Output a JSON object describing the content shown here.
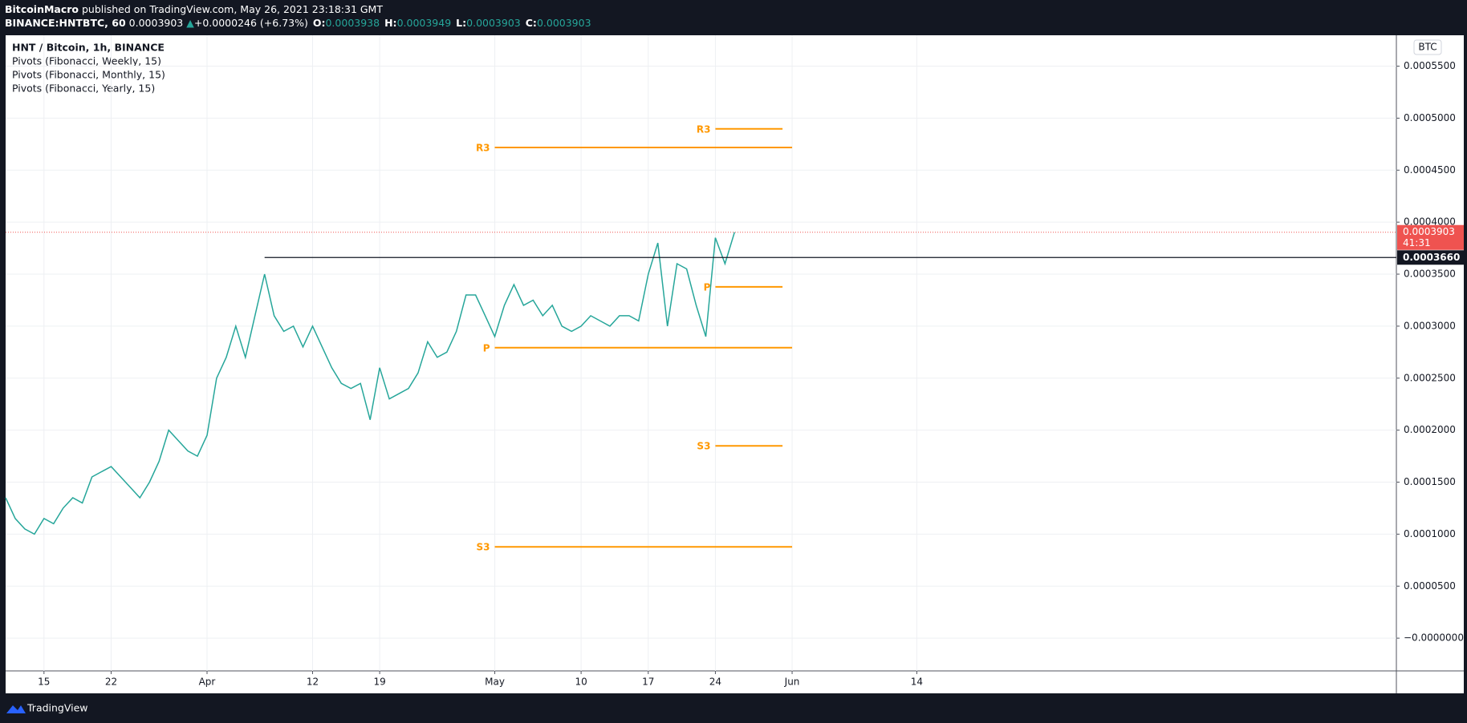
{
  "header": {
    "author": "BitcoinMacro",
    "published": "published on TradingView.com, May 26, 2021 23:18:31 GMT",
    "symbol": "BINANCE:HNTBTC, 60",
    "price": "0.0003903",
    "arrow": "▲",
    "change": "+0.0000246 (+6.73%)",
    "ohlc": [
      {
        "label": "O:",
        "value": "0.0003938"
      },
      {
        "label": "H:",
        "value": "0.0003949"
      },
      {
        "label": "L:",
        "value": "0.0003903"
      },
      {
        "label": "C:",
        "value": "0.0003903"
      }
    ]
  },
  "footer": {
    "brand": "TradingView"
  },
  "chart_data": {
    "type": "line",
    "title": "HNT / Bitcoin, 1h, BINANCE",
    "indicators": [
      "Pivots (Fibonacci, Weekly, 15)",
      "Pivots (Fibonacci, Monthly, 15)",
      "Pivots (Fibonacci, Yearly, 15)"
    ],
    "currency": "BTC",
    "x": [
      "2021-03-11",
      "2021-03-12",
      "2021-03-13",
      "2021-03-14",
      "2021-03-15",
      "2021-03-16",
      "2021-03-17",
      "2021-03-18",
      "2021-03-19",
      "2021-03-20",
      "2021-03-21",
      "2021-03-22",
      "2021-03-23",
      "2021-03-24",
      "2021-03-25",
      "2021-03-26",
      "2021-03-27",
      "2021-03-28",
      "2021-03-29",
      "2021-03-30",
      "2021-03-31",
      "2021-04-01",
      "2021-04-02",
      "2021-04-03",
      "2021-04-04",
      "2021-04-05",
      "2021-04-06",
      "2021-04-07",
      "2021-04-08",
      "2021-04-09",
      "2021-04-10",
      "2021-04-11",
      "2021-04-12",
      "2021-04-13",
      "2021-04-14",
      "2021-04-15",
      "2021-04-16",
      "2021-04-17",
      "2021-04-18",
      "2021-04-19",
      "2021-04-20",
      "2021-04-21",
      "2021-04-22",
      "2021-04-23",
      "2021-04-24",
      "2021-04-25",
      "2021-04-26",
      "2021-04-27",
      "2021-04-28",
      "2021-04-29",
      "2021-04-30",
      "2021-05-01",
      "2021-05-02",
      "2021-05-03",
      "2021-05-04",
      "2021-05-05",
      "2021-05-06",
      "2021-05-07",
      "2021-05-08",
      "2021-05-09",
      "2021-05-10",
      "2021-05-11",
      "2021-05-12",
      "2021-05-13",
      "2021-05-14",
      "2021-05-15",
      "2021-05-16",
      "2021-05-17",
      "2021-05-18",
      "2021-05-19",
      "2021-05-20",
      "2021-05-21",
      "2021-05-22",
      "2021-05-23",
      "2021-05-24",
      "2021-05-25",
      "2021-05-26"
    ],
    "series": [
      {
        "name": "HNT / Bitcoin",
        "color": "#26a69a",
        "values": [
          0.000135,
          0.000115,
          0.000105,
          0.0001,
          0.000115,
          0.00011,
          0.000125,
          0.000135,
          0.00013,
          0.000155,
          0.00016,
          0.000165,
          0.000155,
          0.000145,
          0.000135,
          0.00015,
          0.00017,
          0.0002,
          0.00019,
          0.00018,
          0.000175,
          0.000195,
          0.00025,
          0.00027,
          0.0003,
          0.00027,
          0.00031,
          0.00035,
          0.00031,
          0.000295,
          0.0003,
          0.00028,
          0.0003,
          0.00028,
          0.00026,
          0.000245,
          0.00024,
          0.000245,
          0.00021,
          0.00026,
          0.00023,
          0.000235,
          0.00024,
          0.000255,
          0.000285,
          0.00027,
          0.000275,
          0.000295,
          0.00033,
          0.00033,
          0.00031,
          0.00029,
          0.00032,
          0.00034,
          0.00032,
          0.000325,
          0.00031,
          0.00032,
          0.0003,
          0.000295,
          0.0003,
          0.00031,
          0.000305,
          0.0003,
          0.00031,
          0.00031,
          0.000305,
          0.00035,
          0.00038,
          0.0003,
          0.00036,
          0.000355,
          0.00032,
          0.00029,
          0.000385,
          0.00036,
          0.0003903
        ]
      }
    ],
    "xlim": [
      "2021-03-11",
      "2021-08-03"
    ],
    "xticks": [
      {
        "value": "2021-03-15",
        "label": "15"
      },
      {
        "value": "2021-03-22",
        "label": "22"
      },
      {
        "value": "2021-04-01",
        "label": "Apr"
      },
      {
        "value": "2021-04-12",
        "label": "12"
      },
      {
        "value": "2021-04-19",
        "label": "19"
      },
      {
        "value": "2021-05-01",
        "label": "May"
      },
      {
        "value": "2021-05-10",
        "label": "10"
      },
      {
        "value": "2021-05-17",
        "label": "17"
      },
      {
        "value": "2021-05-24",
        "label": "24"
      },
      {
        "value": "2021-06-01",
        "label": "Jun"
      },
      {
        "value": "2021-06-14",
        "label": "14"
      }
    ],
    "ylim": [
      -3.15e-05,
      0.0005797
    ],
    "yticks": [
      {
        "value": 0,
        "label": "−0.0000000"
      },
      {
        "value": 5e-05,
        "label": "0.0000500"
      },
      {
        "value": 0.0001,
        "label": "0.0001000"
      },
      {
        "value": 0.00015,
        "label": "0.0001500"
      },
      {
        "value": 0.0002,
        "label": "0.0002000"
      },
      {
        "value": 0.00025,
        "label": "0.0002500"
      },
      {
        "value": 0.0003,
        "label": "0.0003000"
      },
      {
        "value": 0.00035,
        "label": "0.0003500"
      },
      {
        "value": 0.0004,
        "label": "0.0004000"
      },
      {
        "value": 0.00045,
        "label": "0.0004500"
      },
      {
        "value": 0.0005,
        "label": "0.0005000"
      },
      {
        "value": 0.00055,
        "label": "0.0005500"
      }
    ],
    "grid": true,
    "pivot_color": "#ff9800",
    "pivots": [
      {
        "label": "R3",
        "value": 0.0004718,
        "start": "2021-05-01",
        "end": "2021-06-01"
      },
      {
        "label": "P",
        "value": 0.0002793,
        "start": "2021-05-01",
        "end": "2021-06-01"
      },
      {
        "label": "S3",
        "value": 8.78e-05,
        "start": "2021-05-01",
        "end": "2021-06-01"
      },
      {
        "label": "R3",
        "value": 0.0004897,
        "start": "2021-05-24",
        "end": "2021-05-31"
      },
      {
        "label": "P",
        "value": 0.0003378,
        "start": "2021-05-24",
        "end": "2021-05-31"
      },
      {
        "label": "S3",
        "value": 0.0001849,
        "start": "2021-05-24",
        "end": "2021-05-31"
      }
    ],
    "hline": {
      "value": 0.000366,
      "label": "0.0003660",
      "start": "2021-04-07",
      "color": "#131722"
    },
    "last_price": {
      "value": 0.0003903,
      "label": "0.0003903",
      "countdown": "41:31",
      "color": "#ef5350"
    }
  }
}
